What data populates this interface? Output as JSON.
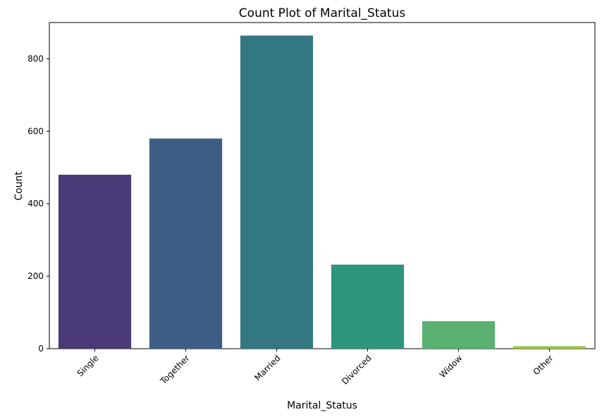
{
  "chart_data": {
    "type": "bar",
    "title": "Count Plot of Marital_Status",
    "xlabel": "Marital_Status",
    "ylabel": "Count",
    "categories": [
      "Single",
      "Together",
      "Married",
      "Divorced",
      "Widow",
      "Other"
    ],
    "values": [
      480,
      580,
      864,
      232,
      76,
      7
    ],
    "colors": [
      "#4a3a78",
      "#3e5d84",
      "#337781",
      "#2e947c",
      "#5ab171",
      "#9bc63c"
    ],
    "ylim": [
      0,
      900
    ],
    "yticks": [
      0,
      200,
      400,
      600,
      800
    ],
    "grid": false,
    "legend": "none"
  }
}
